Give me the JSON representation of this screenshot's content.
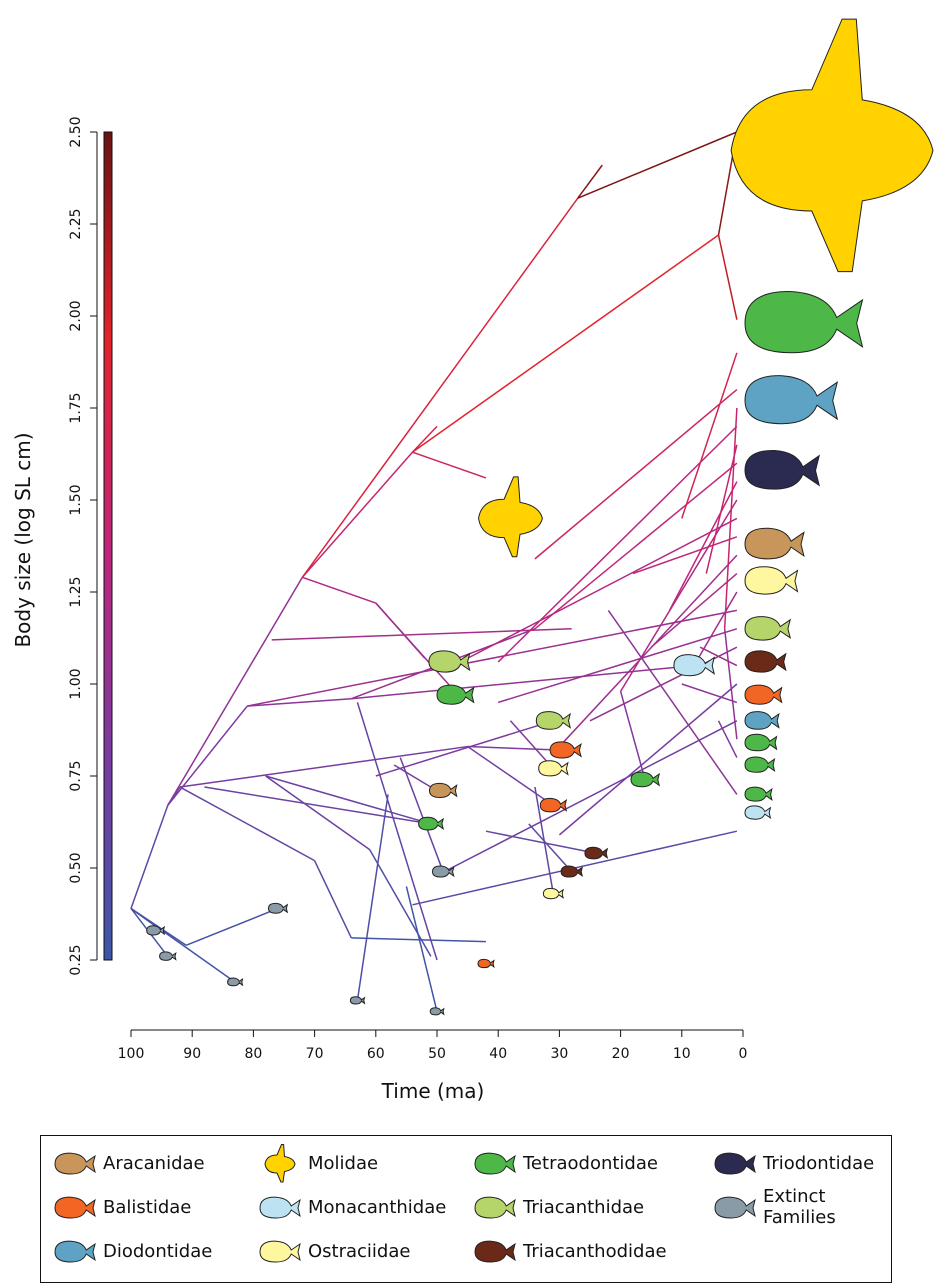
{
  "chart_data": {
    "type": "traitgram",
    "x_label": "Time (ma)",
    "y_label": "Body size (log SL cm)",
    "xlim": [
      100,
      0
    ],
    "xticks": [
      100,
      90,
      80,
      70,
      60,
      50,
      40,
      30,
      20,
      10,
      0
    ],
    "ylim": [
      0.1,
      2.55
    ],
    "yticks": [
      0.25,
      {
        "value": 0.5,
        "label": "0.50"
      },
      0.75,
      {
        "value": 1,
        "label": "1.00"
      },
      1.25,
      {
        "value": 1.5,
        "label": "1.50"
      },
      1.75,
      {
        "value": 2,
        "label": "2.00"
      },
      2.25,
      {
        "value": 2.5,
        "label": "2.50"
      }
    ],
    "colorbar": [
      "#3d57a8",
      "#7b3aa0",
      "#c0257a",
      "#e3232b",
      "#6a1414"
    ],
    "branches": [
      [
        100,
        0.39,
        95,
        0.33
      ],
      [
        100,
        0.39,
        94,
        0.26
      ],
      [
        100,
        0.39,
        83,
        0.19
      ],
      [
        100,
        0.39,
        91,
        0.29
      ],
      [
        91,
        0.29,
        76,
        0.39
      ],
      [
        100,
        0.39,
        94,
        0.67
      ],
      [
        94,
        0.67,
        72,
        1.29
      ],
      [
        72,
        1.29,
        54,
        1.63
      ],
      [
        54,
        1.63,
        4,
        2.22
      ],
      [
        54,
        1.63,
        42,
        1.56
      ],
      [
        4,
        2.22,
        1,
        2.5
      ],
      [
        4,
        2.22,
        1,
        1.99
      ],
      [
        72,
        1.29,
        27,
        2.32
      ],
      [
        27,
        2.32,
        23,
        2.41
      ],
      [
        27,
        2.32,
        1,
        2.5
      ],
      [
        72,
        1.29,
        60,
        1.22
      ],
      [
        60,
        1.22,
        52,
        1.07
      ],
      [
        60,
        1.22,
        46,
        0.96
      ],
      [
        94,
        0.67,
        92,
        0.72
      ],
      [
        92,
        0.72,
        45,
        0.83
      ],
      [
        94,
        0.67,
        81,
        0.94
      ],
      [
        81,
        0.94,
        1,
        1.2
      ],
      [
        92,
        0.72,
        70,
        0.52
      ],
      [
        70,
        0.52,
        64,
        0.31
      ],
      [
        64,
        0.31,
        42,
        0.3
      ],
      [
        81,
        0.94,
        64,
        0.96
      ],
      [
        64,
        0.96,
        8,
        1.05
      ],
      [
        64,
        0.96,
        34,
        1.15
      ],
      [
        34,
        1.15,
        1,
        1.6
      ],
      [
        77,
        1.12,
        28,
        1.15
      ],
      [
        78,
        0.75,
        51,
        0.62
      ],
      [
        78,
        0.75,
        61,
        0.55
      ],
      [
        61,
        0.55,
        51,
        0.26
      ],
      [
        56,
        0.8,
        49,
        0.49
      ],
      [
        54,
        0.4,
        1,
        0.6
      ],
      [
        40,
        1.06,
        1,
        1.7
      ],
      [
        30,
        0.83,
        1,
        1.35
      ],
      [
        20,
        0.98,
        1,
        1.5
      ],
      [
        20,
        0.98,
        16,
        0.74
      ],
      [
        34,
        1.34,
        1,
        1.8
      ],
      [
        45,
        1.07,
        1,
        1.45
      ],
      [
        42,
        0.6,
        24,
        0.54
      ],
      [
        34,
        0.72,
        31,
        0.43
      ],
      [
        50,
        0.48,
        1,
        0.9
      ],
      [
        10,
        1.45,
        1,
        1.9
      ],
      [
        4,
        0.9,
        1,
        0.8
      ],
      [
        54,
        1.63,
        50,
        1.7
      ],
      [
        60,
        0.75,
        31,
        0.9
      ],
      [
        45,
        0.83,
        29,
        0.82
      ],
      [
        38,
        0.9,
        31,
        0.77
      ],
      [
        45,
        0.83,
        31,
        0.67
      ],
      [
        88,
        0.72,
        51,
        0.62
      ],
      [
        57,
        0.78,
        50,
        0.71
      ],
      [
        35,
        0.62,
        28,
        0.49
      ],
      [
        30,
        0.59,
        1,
        1.0
      ],
      [
        25,
        0.9,
        1,
        1.1
      ],
      [
        15,
        1.1,
        1,
        1.3
      ],
      [
        12,
        1.2,
        1,
        1.55
      ],
      [
        8,
        1.05,
        1,
        1.25
      ],
      [
        6,
        1.3,
        1,
        1.65
      ],
      [
        18,
        1.3,
        1,
        1.4
      ],
      [
        10,
        1.0,
        1,
        0.95
      ],
      [
        7,
        1.1,
        1,
        1.05
      ],
      [
        3,
        1.15,
        1,
        0.85
      ],
      [
        3,
        1.15,
        1,
        1.75
      ],
      [
        63,
        0.95,
        50,
        0.25
      ],
      [
        58,
        0.7,
        63,
        0.14
      ],
      [
        55,
        0.45,
        50,
        0.11
      ],
      [
        40,
        0.95,
        1,
        1.15
      ],
      [
        22,
        1.2,
        1,
        0.7
      ]
    ],
    "families": [
      {
        "name": "Aracanidae",
        "color": "#c8955a",
        "tips": [
          [
            49,
            0.71
          ],
          [
            0,
            1.38
          ]
        ]
      },
      {
        "name": "Balistidae",
        "color": "#f26522",
        "tips": [
          [
            29,
            0.82
          ],
          [
            31,
            0.67
          ],
          [
            42,
            0.24
          ],
          [
            0,
            0.97
          ]
        ]
      },
      {
        "name": "Diodontidae",
        "color": "#5ea3c3",
        "tips": [
          [
            0,
            1.77
          ],
          [
            0,
            0.9
          ]
        ]
      },
      {
        "name": "Molidae",
        "color": "#ffd200",
        "tips": [
          [
            38,
            1.45
          ],
          [
            0,
            2.45
          ]
        ]
      },
      {
        "name": "Monacanthidae",
        "color": "#bde3f2",
        "tips": [
          [
            8,
            1.05
          ],
          [
            0,
            0.65
          ]
        ]
      },
      {
        "name": "Ostraciidae",
        "color": "#fff6a0",
        "tips": [
          [
            31,
            0.77
          ],
          [
            31,
            0.43
          ],
          [
            0,
            1.28
          ]
        ]
      },
      {
        "name": "Tetraodontidae",
        "color": "#4db848",
        "tips": [
          [
            47,
            0.97
          ],
          [
            16,
            0.74
          ],
          [
            51,
            0.62
          ],
          [
            0,
            1.98
          ],
          [
            0,
            0.84
          ],
          [
            0,
            0.78
          ],
          [
            0,
            0.7
          ]
        ]
      },
      {
        "name": "Triacanthidae",
        "color": "#b5d56a",
        "tips": [
          [
            48,
            1.06
          ],
          [
            31,
            0.9
          ],
          [
            0,
            1.15
          ]
        ]
      },
      {
        "name": "Triacanthodidae",
        "color": "#6b2a17",
        "tips": [
          [
            24,
            0.54
          ],
          [
            28,
            0.49
          ],
          [
            0,
            1.06
          ]
        ]
      },
      {
        "name": "Triodontidae",
        "color": "#2b2a50",
        "tips": [
          [
            0,
            1.58
          ]
        ]
      },
      {
        "name": "Extinct Families",
        "color": "#8a9ba8",
        "tips": [
          [
            49,
            0.49
          ],
          [
            76,
            0.39
          ],
          [
            96,
            0.33
          ],
          [
            94,
            0.26
          ],
          [
            83,
            0.19
          ],
          [
            63,
            0.14
          ],
          [
            50,
            0.11
          ]
        ]
      }
    ]
  }
}
